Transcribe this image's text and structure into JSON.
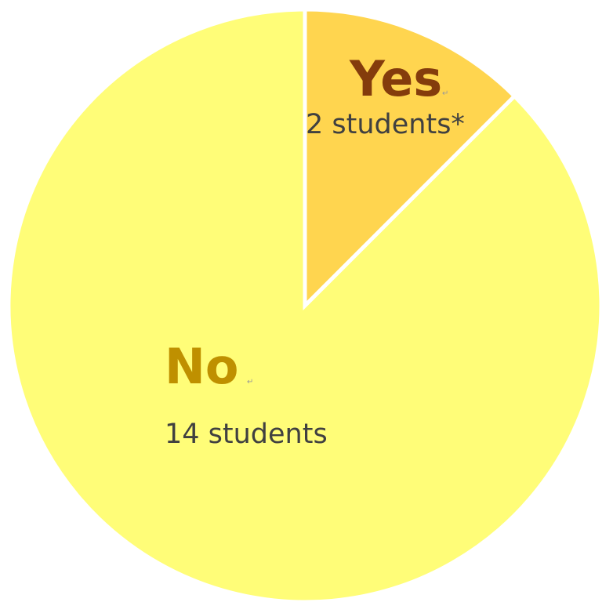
{
  "chart_data": {
    "type": "pie",
    "title": "",
    "slices": [
      {
        "label": "Yes",
        "value": 2,
        "value_text": "2 students*",
        "color": "#FFD54F",
        "label_color": "#843C0C"
      },
      {
        "label": "No",
        "value": 14,
        "value_text": "14 students",
        "color": "#FFFD78",
        "label_color": "#BF9000"
      }
    ],
    "start_angle": "12 o'clock",
    "direction": "clockwise",
    "separator_color": "#FFFFFF",
    "legend": "none"
  }
}
